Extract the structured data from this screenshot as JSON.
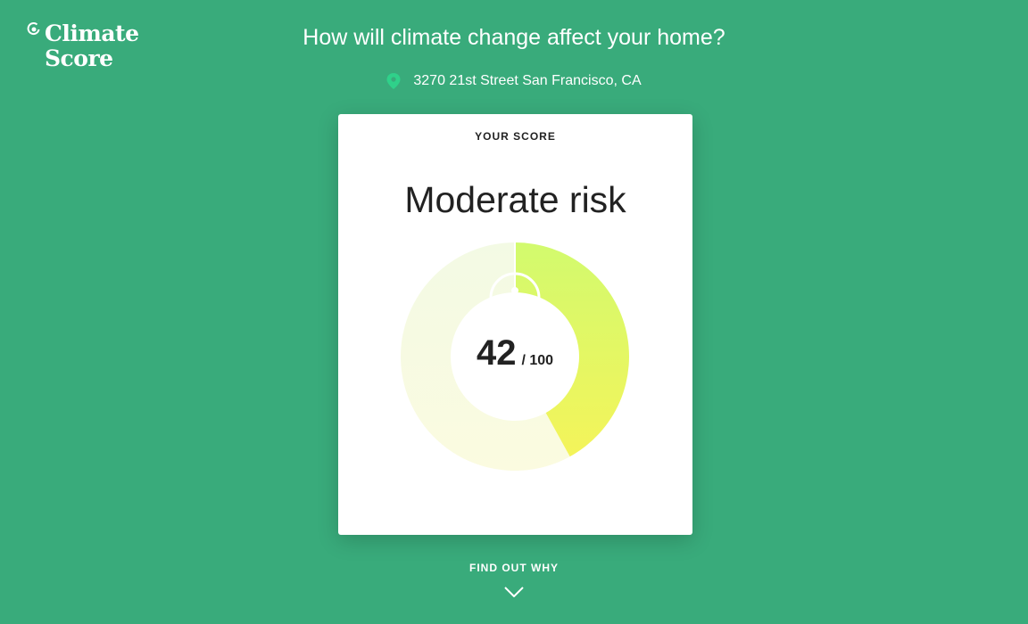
{
  "brand": {
    "line1": "Climate",
    "line2": "Score"
  },
  "header": {
    "question": "How will climate change affect your home?",
    "address": "3270 21st Street San Francisco, CA"
  },
  "card": {
    "label": "YOUR SCORE",
    "risk_level": "Moderate risk",
    "score": "42",
    "score_max": "/ 100",
    "score_fraction": 0.42
  },
  "footer": {
    "cta": "FIND OUT WHY"
  },
  "colors": {
    "background": "#39ab7b",
    "pin": "#2fd18a",
    "gauge_fill_start": "#d4f96e",
    "gauge_fill_end": "#f2f55e",
    "gauge_track": "#f6fbe4"
  },
  "icons": {
    "logo": "sun-logo-icon",
    "pin": "map-pin-icon",
    "scroll": "chevron-down-icon"
  }
}
